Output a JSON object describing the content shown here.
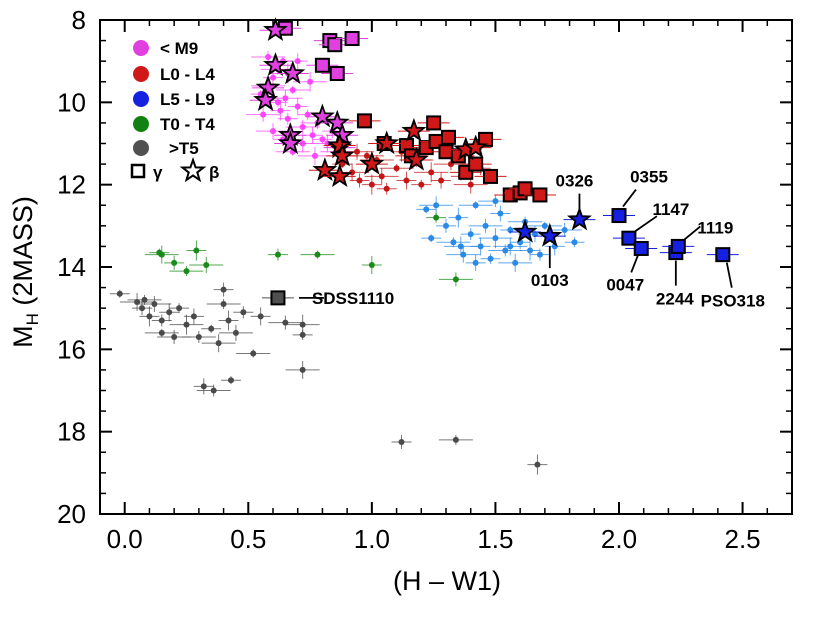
{
  "colors": {
    "lt_m9": "#e040e0",
    "l0_l4": "#d01818",
    "l5_l9": "#1520e0",
    "t0_t4": "#128012",
    "gt_t5": "#505050",
    "lt_m9_field": "#ff44ff",
    "l0_l4_field": "#c41616",
    "l5_l9_field": "#2a8ae8",
    "t0_t4_field": "#1a8a1a",
    "gt_t5_field": "#4a4a4a"
  },
  "chart_data": {
    "type": "scatter",
    "title": "",
    "xlabel": "(H – W1)",
    "ylabel": "M",
    "ylabel_sub": "H",
    "ylabel_rest": " (2MASS)",
    "xlim": [
      -0.1,
      2.7
    ],
    "ylim": [
      8,
      20
    ],
    "y_inverted": true,
    "x_ticks": [
      "0.0",
      "0.5",
      "1.0",
      "1.5",
      "2.0",
      "2.5"
    ],
    "y_ticks": [
      "8",
      "10",
      "12",
      "14",
      "16",
      "18",
      "20"
    ],
    "legend": {
      "position": "top-left",
      "entries": [
        {
          "label": "< M9",
          "key": "lt_m9"
        },
        {
          "label": "L0 - L4",
          "key": "l0_l4"
        },
        {
          "label": "L5 - L9",
          "key": "l5_l9"
        },
        {
          "label": "T0 - T4",
          "key": "t0_t4"
        },
        {
          "label": ">T5",
          "key": "gt_t5"
        }
      ],
      "gamma_label": "γ",
      "beta_label": "β"
    },
    "series": [
      {
        "name": "< M9 field",
        "group": "lt_m9",
        "style": "field",
        "points": [
          [
            0.55,
            9.8
          ],
          [
            0.58,
            9.6
          ],
          [
            0.6,
            9.4
          ],
          [
            0.62,
            9.2
          ],
          [
            0.63,
            10.2
          ],
          [
            0.65,
            9.9
          ],
          [
            0.66,
            10.4
          ],
          [
            0.68,
            9.7
          ],
          [
            0.7,
            10.1
          ],
          [
            0.72,
            10.6
          ],
          [
            0.74,
            10.3
          ],
          [
            0.75,
            9.5
          ],
          [
            0.76,
            10.8
          ],
          [
            0.78,
            10.5
          ],
          [
            0.8,
            10.9
          ],
          [
            0.82,
            11.0
          ],
          [
            0.84,
            10.7
          ],
          [
            0.86,
            11.2
          ],
          [
            0.88,
            11.1
          ],
          [
            0.6,
            10.7
          ],
          [
            0.64,
            10.9
          ],
          [
            0.68,
            11.2
          ],
          [
            0.72,
            11.0
          ],
          [
            0.56,
            10.3
          ],
          [
            0.62,
            10.0
          ],
          [
            0.66,
            9.3
          ],
          [
            0.7,
            9.0
          ],
          [
            0.58,
            8.9
          ],
          [
            0.64,
            9.0
          ],
          [
            0.77,
            11.3
          ]
        ]
      },
      {
        "name": "L0 - L4 field",
        "group": "l0_l4",
        "style": "field",
        "points": [
          [
            0.88,
            11.5
          ],
          [
            0.92,
            11.7
          ],
          [
            0.95,
            11.9
          ],
          [
            0.98,
            11.3
          ],
          [
            1.0,
            12.0
          ],
          [
            1.04,
            11.8
          ],
          [
            1.06,
            12.1
          ],
          [
            1.1,
            11.6
          ],
          [
            1.14,
            11.9
          ],
          [
            1.18,
            11.4
          ],
          [
            1.2,
            12.0
          ],
          [
            1.24,
            11.7
          ],
          [
            1.28,
            11.9
          ],
          [
            1.32,
            11.5
          ],
          [
            1.36,
            11.8
          ],
          [
            1.4,
            12.0
          ],
          [
            1.44,
            11.6
          ],
          [
            1.02,
            11.4
          ],
          [
            1.12,
            11.2
          ],
          [
            0.94,
            11.2
          ]
        ]
      },
      {
        "name": "L5 - L9 field",
        "group": "l5_l9",
        "style": "field",
        "points": [
          [
            1.22,
            12.6
          ],
          [
            1.26,
            12.5
          ],
          [
            1.3,
            13.0
          ],
          [
            1.33,
            13.4
          ],
          [
            1.35,
            12.8
          ],
          [
            1.37,
            13.7
          ],
          [
            1.4,
            13.2
          ],
          [
            1.42,
            12.5
          ],
          [
            1.44,
            13.5
          ],
          [
            1.46,
            13.0
          ],
          [
            1.48,
            13.8
          ],
          [
            1.5,
            13.3
          ],
          [
            1.52,
            12.7
          ],
          [
            1.54,
            13.6
          ],
          [
            1.56,
            13.1
          ],
          [
            1.58,
            13.9
          ],
          [
            1.6,
            13.4
          ],
          [
            1.62,
            12.9
          ],
          [
            1.64,
            13.6
          ],
          [
            1.66,
            13.2
          ],
          [
            1.68,
            13.7
          ],
          [
            1.7,
            13.0
          ],
          [
            1.74,
            13.5
          ],
          [
            1.78,
            13.1
          ],
          [
            1.82,
            13.4
          ],
          [
            1.36,
            13.5
          ],
          [
            1.42,
            13.9
          ],
          [
            1.5,
            12.4
          ],
          [
            1.24,
            13.3
          ],
          [
            1.56,
            13.5
          ]
        ]
      },
      {
        "name": "T0 - T4 field",
        "group": "t0_t4",
        "style": "field",
        "points": [
          [
            0.14,
            13.65
          ],
          [
            0.15,
            13.7
          ],
          [
            0.2,
            13.9
          ],
          [
            0.25,
            14.1
          ],
          [
            0.29,
            13.6
          ],
          [
            0.33,
            13.95
          ],
          [
            0.62,
            13.7
          ],
          [
            0.78,
            13.7
          ],
          [
            1.0,
            13.95
          ],
          [
            1.34,
            14.3
          ],
          [
            1.26,
            12.8
          ]
        ]
      },
      {
        "name": ">T5 field",
        "group": "gt_t5",
        "style": "field",
        "points": [
          [
            -0.02,
            14.65
          ],
          [
            0.05,
            14.85
          ],
          [
            0.07,
            15.0
          ],
          [
            0.08,
            14.8
          ],
          [
            0.1,
            15.2
          ],
          [
            0.12,
            14.9
          ],
          [
            0.15,
            15.3
          ],
          [
            0.15,
            15.6
          ],
          [
            0.18,
            15.1
          ],
          [
            0.2,
            15.7
          ],
          [
            0.22,
            15.0
          ],
          [
            0.25,
            15.4
          ],
          [
            0.28,
            15.2
          ],
          [
            0.3,
            15.7
          ],
          [
            0.35,
            15.5
          ],
          [
            0.38,
            15.85
          ],
          [
            0.4,
            14.55
          ],
          [
            0.4,
            14.9
          ],
          [
            0.42,
            15.3
          ],
          [
            0.45,
            15.6
          ],
          [
            0.48,
            15.1
          ],
          [
            0.52,
            16.1
          ],
          [
            0.55,
            15.2
          ],
          [
            0.65,
            15.35
          ],
          [
            0.72,
            15.65
          ],
          [
            0.72,
            15.4
          ],
          [
            0.32,
            16.9
          ],
          [
            0.36,
            17.0
          ],
          [
            0.43,
            16.75
          ],
          [
            0.72,
            16.5
          ],
          [
            1.12,
            18.25
          ],
          [
            1.34,
            18.2
          ],
          [
            1.67,
            18.8
          ]
        ]
      },
      {
        "name": "< M9 gamma",
        "group": "lt_m9",
        "style": "square",
        "points": [
          [
            0.65,
            8.2
          ],
          [
            0.83,
            8.5
          ],
          [
            0.85,
            8.6
          ],
          [
            0.92,
            8.45
          ],
          [
            0.8,
            9.1
          ],
          [
            0.86,
            9.3
          ]
        ]
      },
      {
        "name": "< M9 beta",
        "group": "lt_m9",
        "style": "star",
        "points": [
          [
            0.61,
            8.25
          ],
          [
            0.61,
            9.1
          ],
          [
            0.68,
            9.3
          ],
          [
            0.58,
            9.65
          ],
          [
            0.57,
            9.95
          ],
          [
            0.8,
            10.35
          ],
          [
            0.86,
            10.5
          ],
          [
            0.88,
            10.8
          ],
          [
            0.67,
            10.8
          ],
          [
            0.67,
            11.0
          ],
          [
            0.87,
            11.1
          ]
        ]
      },
      {
        "name": "L0 - L4 gamma",
        "group": "l0_l4",
        "style": "square",
        "points": [
          [
            0.97,
            10.45
          ],
          [
            1.05,
            11.0
          ],
          [
            1.14,
            11.05
          ],
          [
            1.16,
            11.3
          ],
          [
            1.22,
            11.1
          ],
          [
            1.25,
            10.5
          ],
          [
            1.26,
            10.95
          ],
          [
            1.3,
            11.2
          ],
          [
            1.31,
            10.85
          ],
          [
            1.35,
            11.3
          ],
          [
            1.38,
            11.7
          ],
          [
            1.42,
            11.5
          ],
          [
            1.46,
            10.9
          ],
          [
            1.48,
            11.8
          ],
          [
            1.56,
            12.25
          ],
          [
            1.6,
            12.2
          ],
          [
            1.62,
            12.1
          ],
          [
            1.68,
            12.25
          ]
        ]
      },
      {
        "name": "L0 - L4 beta",
        "group": "l0_l4",
        "style": "star",
        "points": [
          [
            0.87,
            11.05
          ],
          [
            0.88,
            11.3
          ],
          [
            0.81,
            11.65
          ],
          [
            0.87,
            11.8
          ],
          [
            1.0,
            11.5
          ],
          [
            1.06,
            11.0
          ],
          [
            1.17,
            10.7
          ],
          [
            1.18,
            11.4
          ],
          [
            1.38,
            11.15
          ],
          [
            1.42,
            11.1
          ]
        ]
      },
      {
        "name": "L5 - L9 gamma",
        "group": "l5_l9",
        "style": "square",
        "points": [
          [
            2.0,
            12.75
          ],
          [
            2.04,
            13.3
          ],
          [
            2.09,
            13.55
          ],
          [
            2.23,
            13.65
          ],
          [
            2.24,
            13.5
          ],
          [
            2.42,
            13.7
          ]
        ]
      },
      {
        "name": "L5 - L9 beta",
        "group": "l5_l9",
        "style": "star",
        "points": [
          [
            1.62,
            13.15
          ],
          [
            1.72,
            13.25
          ],
          [
            1.84,
            12.85
          ]
        ]
      },
      {
        "name": ">T5 gamma",
        "group": "gt_t5",
        "style": "square",
        "points": [
          [
            0.62,
            14.75
          ]
        ]
      }
    ],
    "annotations": [
      {
        "text": "0326",
        "x": 1.84,
        "y": 12.85
      },
      {
        "text": "0355",
        "x": 2.0,
        "y": 12.75
      },
      {
        "text": "1147",
        "x": 2.04,
        "y": 13.3
      },
      {
        "text": "1119",
        "x": 2.24,
        "y": 13.5
      },
      {
        "text": "0047",
        "x": 2.09,
        "y": 13.55
      },
      {
        "text": "2244",
        "x": 2.23,
        "y": 13.65
      },
      {
        "text": "PSO318",
        "x": 2.42,
        "y": 13.7
      },
      {
        "text": "0103",
        "x": 1.72,
        "y": 13.25
      },
      {
        "text": "SDSS1110",
        "x": 0.62,
        "y": 14.75
      }
    ]
  }
}
